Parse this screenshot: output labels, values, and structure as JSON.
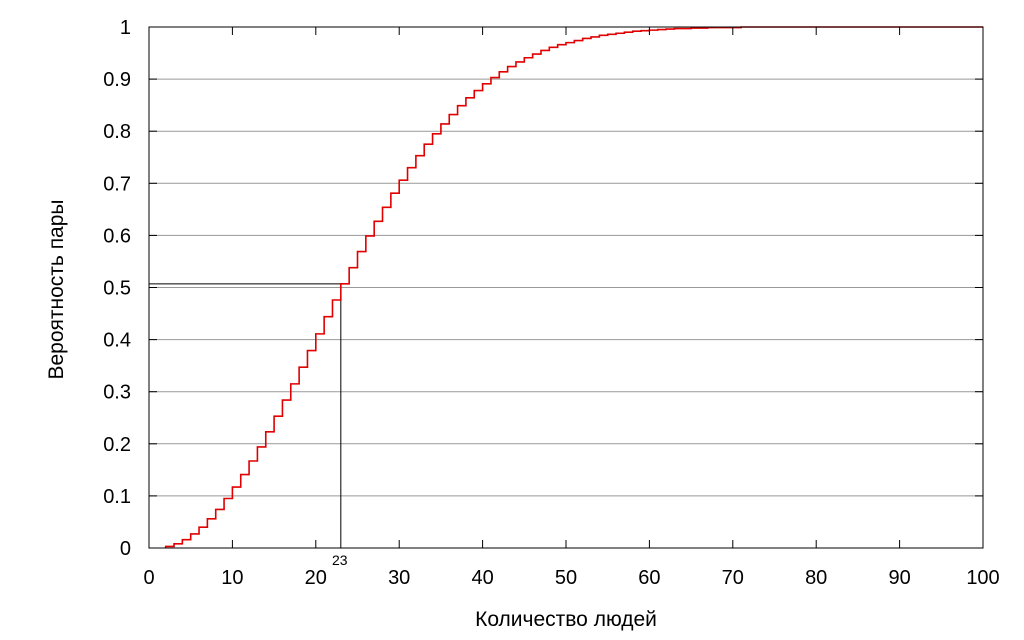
{
  "chart_data": {
    "type": "line",
    "step": true,
    "title": "",
    "xlabel": "Количество людей",
    "ylabel": "Вероятность пары",
    "xlim": [
      0,
      100
    ],
    "ylim": [
      0,
      1
    ],
    "x_ticks": [
      "0",
      "10",
      "20",
      "30",
      "40",
      "50",
      "60",
      "70",
      "80",
      "90",
      "100"
    ],
    "y_ticks": [
      "0",
      "0.1",
      "0.2",
      "0.3",
      "0.4",
      "0.5",
      "0.6",
      "0.7",
      "0.8",
      "0.9",
      "1"
    ],
    "grid": "horizontal",
    "series": [
      {
        "color": "#e00000",
        "x": [
          2,
          3,
          4,
          5,
          6,
          7,
          8,
          9,
          10,
          11,
          12,
          13,
          14,
          15,
          16,
          17,
          18,
          19,
          20,
          21,
          22,
          23,
          24,
          25,
          26,
          27,
          28,
          29,
          30,
          31,
          32,
          33,
          34,
          35,
          36,
          37,
          38,
          39,
          40,
          41,
          42,
          43,
          44,
          45,
          46,
          47,
          48,
          49,
          50,
          51,
          52,
          53,
          54,
          55,
          56,
          57,
          58,
          59,
          60,
          61,
          62,
          63,
          64,
          65,
          66,
          67,
          68,
          69,
          70,
          71,
          72,
          73,
          74,
          75,
          76,
          77,
          78,
          79,
          80,
          81,
          82,
          83,
          84,
          85,
          86,
          87,
          88,
          89,
          90,
          91,
          92,
          93,
          94,
          95,
          96,
          97,
          98,
          99,
          100
        ],
        "y": [
          0.003,
          0.008,
          0.016,
          0.027,
          0.04,
          0.056,
          0.074,
          0.095,
          0.117,
          0.141,
          0.167,
          0.194,
          0.223,
          0.253,
          0.284,
          0.315,
          0.347,
          0.379,
          0.411,
          0.444,
          0.476,
          0.507,
          0.538,
          0.569,
          0.599,
          0.627,
          0.654,
          0.681,
          0.706,
          0.73,
          0.753,
          0.775,
          0.795,
          0.814,
          0.832,
          0.849,
          0.864,
          0.878,
          0.891,
          0.903,
          0.914,
          0.924,
          0.933,
          0.941,
          0.948,
          0.955,
          0.961,
          0.966,
          0.97,
          0.974,
          0.978,
          0.981,
          0.984,
          0.986,
          0.988,
          0.99,
          0.992,
          0.993,
          0.994,
          0.995,
          0.996,
          0.997,
          0.997,
          0.998,
          0.998,
          0.999,
          0.999,
          0.999,
          0.999,
          1.0,
          1.0,
          1.0,
          1.0,
          1.0,
          1.0,
          1.0,
          1.0,
          1.0,
          1.0,
          1.0,
          1.0,
          1.0,
          1.0,
          1.0,
          1.0,
          1.0,
          1.0,
          1.0,
          1.0,
          1.0,
          1.0,
          1.0,
          1.0,
          1.0,
          1.0,
          1.0,
          1.0,
          1.0,
          1.0
        ]
      }
    ],
    "annotations": [
      {
        "text": "23",
        "x": 23,
        "y": 0.507
      }
    ]
  }
}
